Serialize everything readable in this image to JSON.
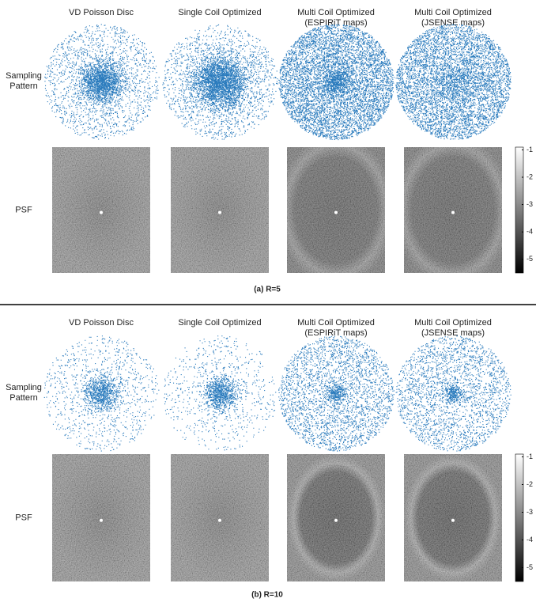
{
  "panels": [
    {
      "columns": [
        [
          "VD Poisson Disc"
        ],
        [
          "Single Coil Optimized"
        ],
        [
          "Multi Coil Optimized",
          "(ESPIRiT maps)"
        ],
        [
          "Multi Coil Optimized",
          "(JSENSE maps)"
        ]
      ],
      "sampling_label": [
        "Sampling",
        "Pattern"
      ],
      "psf_label": "PSF",
      "caption": "(a) R=5",
      "colorbar": {
        "lim": [
          -5.5,
          -0.9
        ],
        "ticks": [
          -1,
          -2,
          -3,
          -4,
          -5
        ]
      }
    },
    {
      "columns": [
        [
          "VD Poisson Disc"
        ],
        [
          "Single Coil Optimized"
        ],
        [
          "Multi Coil Optimized",
          "(ESPIRiT maps)"
        ],
        [
          "Multi Coil Optimized",
          "(JSENSE maps)"
        ]
      ],
      "sampling_label": [
        "Sampling",
        "Pattern"
      ],
      "psf_label": "PSF",
      "caption": "(b) R=10",
      "colorbar": {
        "lim": [
          -5.5,
          -0.9
        ],
        "ticks": [
          -1,
          -2,
          -3,
          -4,
          -5
        ]
      }
    }
  ]
}
